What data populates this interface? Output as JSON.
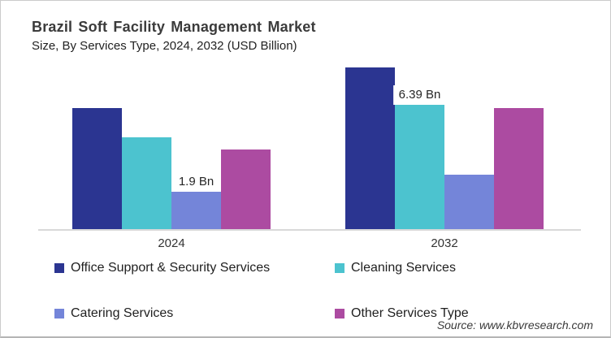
{
  "header": {
    "title": "Brazil Soft Facility Management Market",
    "subtitle": "Size, By Services Type, 2024, 2032 (USD Billion)"
  },
  "source_note": "Source: www.kbvresearch.com",
  "chart_data": {
    "type": "bar",
    "unit": "USD Billion",
    "title": "Brazil Soft Facility Management Market",
    "subtitle": "Size, By Services Type, 2024, 2032 (USD Billion)",
    "categories": [
      "2024",
      "2032"
    ],
    "series": [
      {
        "name": "Office Support & Security Services",
        "color": "#2B3591",
        "values": [
          6.2,
          8.3
        ],
        "labels": [
          "",
          ""
        ]
      },
      {
        "name": "Cleaning Services",
        "color": "#4CC3CF",
        "values": [
          4.7,
          6.39
        ],
        "labels": [
          "",
          "6.39 Bn"
        ]
      },
      {
        "name": "Catering Services",
        "color": "#7485D9",
        "values": [
          1.9,
          2.8
        ],
        "labels": [
          "1.9 Bn",
          ""
        ]
      },
      {
        "name": "Other Services Type",
        "color": "#AC4BA1",
        "values": [
          4.1,
          6.2
        ],
        "labels": [
          "",
          ""
        ]
      }
    ],
    "ylim": [
      0,
      9
    ],
    "grid": false,
    "legend_position": "bottom",
    "axis_line_color": "#D9D9D9"
  }
}
